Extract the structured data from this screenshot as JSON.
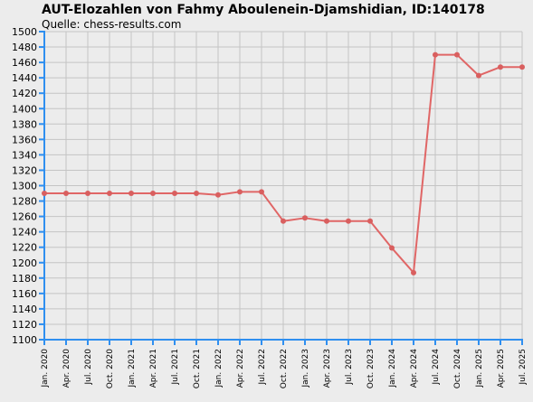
{
  "title": "AUT-Elozahlen von Fahmy Aboulenein-Djamshidian, ID:140178",
  "subtitle": "Quelle: chess-results.com",
  "colors": {
    "line": "#e06666",
    "marker": "#d95f5f",
    "axis": "#2f8ff0",
    "grid": "#c4c4c4",
    "background": "#ececec"
  },
  "chart_data": {
    "type": "line",
    "title": "AUT-Elozahlen von Fahmy Aboulenein-Djamshidian, ID:140178",
    "subtitle": "Quelle: chess-results.com",
    "xlabel": "",
    "ylabel": "",
    "ylim": [
      1100,
      1500
    ],
    "ytick_step": 20,
    "grid": true,
    "categories": [
      "Jan. 2020",
      "Apr. 2020",
      "Jul. 2020",
      "Oct. 2020",
      "Jan. 2021",
      "Apr. 2021",
      "Jul. 2021",
      "Oct. 2021",
      "Jan. 2022",
      "Apr. 2022",
      "Jul. 2022",
      "Oct. 2022",
      "Jan. 2023",
      "Apr. 2023",
      "Jul. 2023",
      "Oct. 2023",
      "Jan. 2024",
      "Apr. 2024",
      "Jul. 2024",
      "Oct. 2024",
      "Jan. 2025",
      "Apr. 2025",
      "Jul. 2025"
    ],
    "series": [
      {
        "values": [
          1290,
          1290,
          1290,
          1290,
          1290,
          1290,
          1290,
          1290,
          1288,
          1292,
          1292,
          1254,
          1258,
          1254,
          1254,
          1254,
          1219,
          1187,
          1470,
          1470,
          1443,
          1454,
          1454
        ]
      }
    ]
  }
}
